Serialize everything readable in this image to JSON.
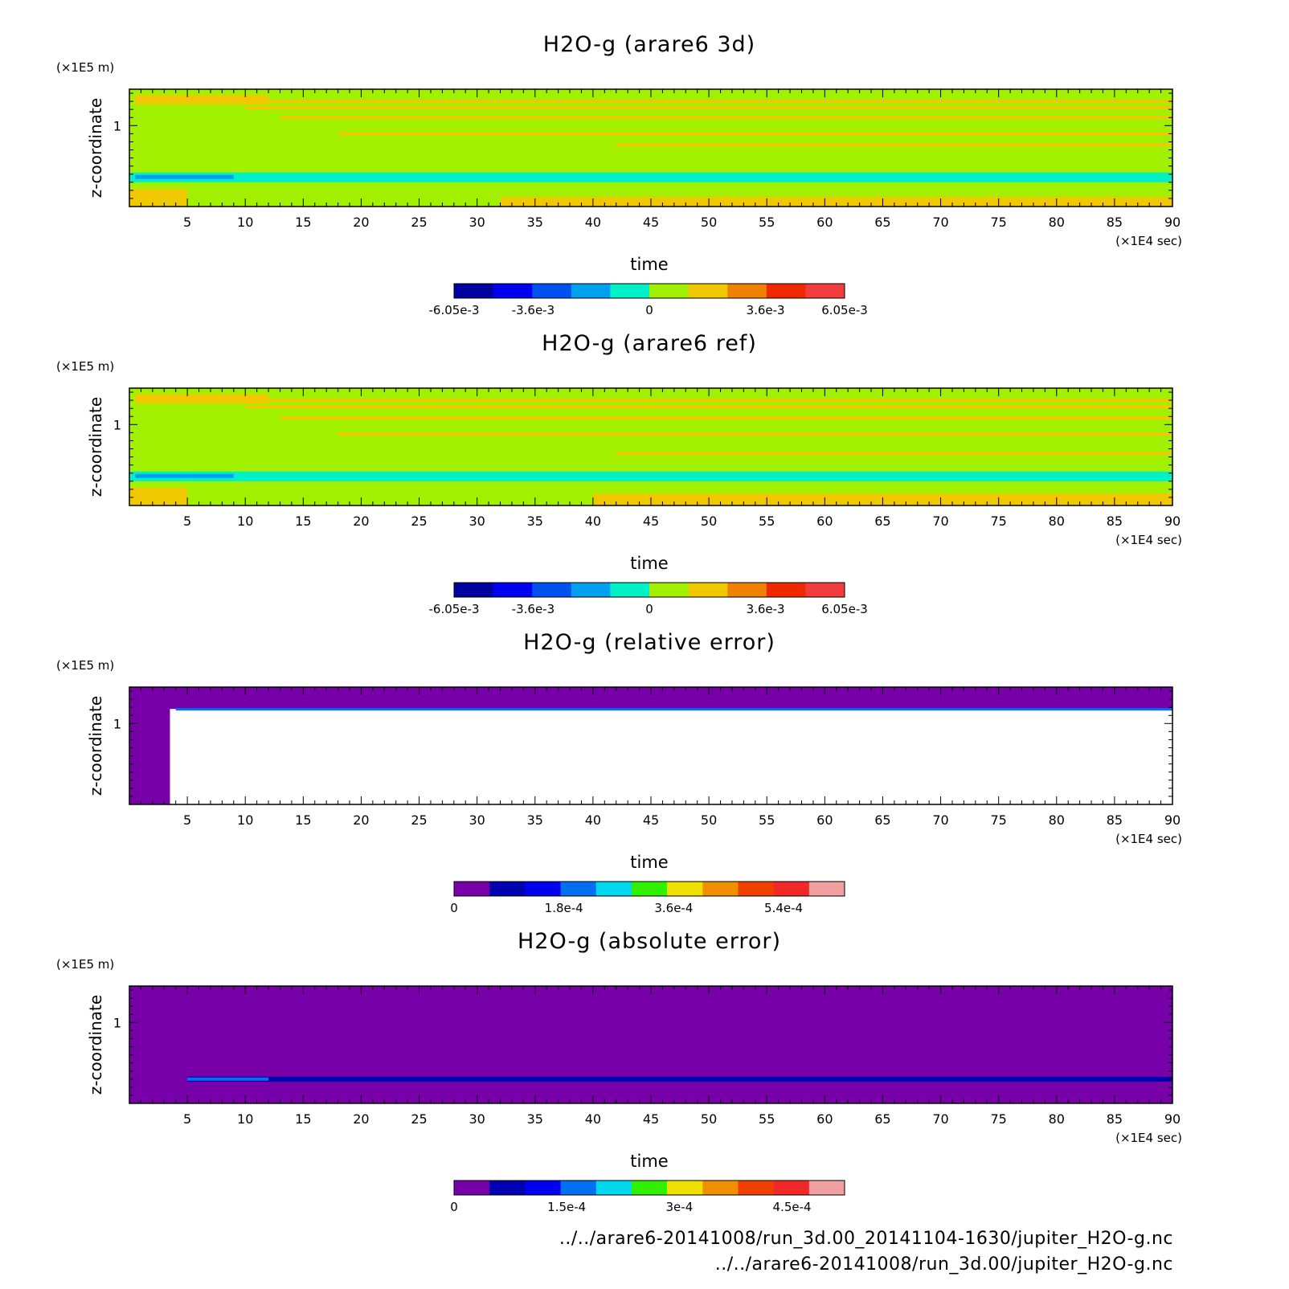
{
  "footer": {
    "line1": "../../arare6-20141008/run_3d.00_20141104-1630/jupiter_H2O-g.nc",
    "line2": "../../arare6-20141008/run_3d.00/jupiter_H2O-g.nc"
  },
  "chart_data": [
    {
      "type": "heatmap",
      "title": "H2O-g (arare6 3d)",
      "xlabel": "time",
      "x_unit": "(×1E4 sec)",
      "ylabel": "z-coordinate",
      "y_unit": "(×1E5 m)",
      "xlim": [
        0,
        90
      ],
      "ylim": [
        0,
        1.45
      ],
      "x_ticks": [
        5,
        10,
        15,
        20,
        25,
        30,
        35,
        40,
        45,
        50,
        55,
        60,
        65,
        70,
        75,
        80,
        85,
        90
      ],
      "y_ticks": [
        1
      ],
      "background_level": 0,
      "bands": [
        {
          "y": [
            1.26,
            1.38
          ],
          "x": [
            0.5,
            12
          ],
          "level": 1
        },
        {
          "y": [
            1.08,
            1.12
          ],
          "x": [
            13,
            90
          ],
          "level": 1
        },
        {
          "y": [
            0.88,
            0.92
          ],
          "x": [
            18,
            90
          ],
          "level": 1
        },
        {
          "y": [
            1.2,
            1.24
          ],
          "x": [
            10,
            90
          ],
          "level": 1
        },
        {
          "y": [
            1.28,
            1.32
          ],
          "x": [
            12,
            90
          ],
          "level": 1
        },
        {
          "y": [
            0.74,
            0.78
          ],
          "x": [
            42,
            90
          ],
          "level": 1
        },
        {
          "y": [
            0.3,
            0.42
          ],
          "x": [
            0,
            90
          ],
          "level": -1
        },
        {
          "y": [
            0.34,
            0.39
          ],
          "x": [
            0.5,
            9
          ],
          "level": -2
        },
        {
          "y": [
            0.0,
            0.22
          ],
          "x": [
            0,
            5
          ],
          "level": 1
        },
        {
          "y": [
            0.0,
            0.12
          ],
          "x": [
            32,
            90
          ],
          "level": 1
        }
      ],
      "colorbar": {
        "colors": [
          "#0000a0",
          "#0000f0",
          "#0050f0",
          "#00a0f0",
          "#00f0c8",
          "#a0f000",
          "#f0c800",
          "#f08000",
          "#f02800",
          "#f03c3c"
        ],
        "labels": [
          {
            "value": -0.00605,
            "text": "-6.05e-3"
          },
          {
            "value": -0.0036,
            "text": "-3.6e-3"
          },
          {
            "value": 0,
            "text": "0"
          },
          {
            "value": 0.0036,
            "text": "3.6e-3"
          },
          {
            "value": 0.00605,
            "text": "6.05e-3"
          }
        ],
        "range": [
          -0.00605,
          0.00605
        ]
      }
    },
    {
      "type": "heatmap",
      "title": "H2O-g (arare6 ref)",
      "xlabel": "time",
      "x_unit": "(×1E4 sec)",
      "ylabel": "z-coordinate",
      "y_unit": "(×1E5 m)",
      "xlim": [
        0,
        90
      ],
      "ylim": [
        0,
        1.45
      ],
      "x_ticks": [
        5,
        10,
        15,
        20,
        25,
        30,
        35,
        40,
        45,
        50,
        55,
        60,
        65,
        70,
        75,
        80,
        85,
        90
      ],
      "y_ticks": [
        1
      ],
      "background_level": 0,
      "bands": [
        {
          "y": [
            1.26,
            1.38
          ],
          "x": [
            0.5,
            12
          ],
          "level": 1
        },
        {
          "y": [
            1.06,
            1.1
          ],
          "x": [
            13,
            90
          ],
          "level": 1
        },
        {
          "y": [
            0.86,
            0.9
          ],
          "x": [
            18,
            90
          ],
          "level": 1
        },
        {
          "y": [
            1.2,
            1.24
          ],
          "x": [
            10,
            90
          ],
          "level": 1
        },
        {
          "y": [
            1.28,
            1.32
          ],
          "x": [
            12,
            90
          ],
          "level": 1
        },
        {
          "y": [
            0.62,
            0.66
          ],
          "x": [
            42,
            90
          ],
          "level": 1
        },
        {
          "y": [
            0.3,
            0.42
          ],
          "x": [
            0,
            90
          ],
          "level": -1
        },
        {
          "y": [
            0.34,
            0.39
          ],
          "x": [
            0.5,
            9
          ],
          "level": -2
        },
        {
          "y": [
            0.0,
            0.22
          ],
          "x": [
            0,
            5
          ],
          "level": 1
        },
        {
          "y": [
            0.0,
            0.15
          ],
          "x": [
            40,
            90
          ],
          "level": 1
        }
      ],
      "colorbar": {
        "colors": [
          "#0000a0",
          "#0000f0",
          "#0050f0",
          "#00a0f0",
          "#00f0c8",
          "#a0f000",
          "#f0c800",
          "#f08000",
          "#f02800",
          "#f03c3c"
        ],
        "labels": [
          {
            "value": -0.00605,
            "text": "-6.05e-3"
          },
          {
            "value": -0.0036,
            "text": "-3.6e-3"
          },
          {
            "value": 0,
            "text": "0"
          },
          {
            "value": 0.0036,
            "text": "3.6e-3"
          },
          {
            "value": 0.00605,
            "text": "6.05e-3"
          }
        ],
        "range": [
          -0.00605,
          0.00605
        ]
      }
    },
    {
      "type": "heatmap",
      "title": "H2O-g (relative error)",
      "xlabel": "time",
      "x_unit": "(×1E4 sec)",
      "ylabel": "z-coordinate",
      "y_unit": "(×1E5 m)",
      "xlim": [
        0,
        90
      ],
      "ylim": [
        0,
        1.45
      ],
      "x_ticks": [
        5,
        10,
        15,
        20,
        25,
        30,
        35,
        40,
        45,
        50,
        55,
        60,
        65,
        70,
        75,
        80,
        85,
        90
      ],
      "y_ticks": [
        1
      ],
      "background_level": 0,
      "bands": [
        {
          "y": [
            1.18,
            1.45
          ],
          "x": [
            0,
            90
          ],
          "level": 0
        },
        {
          "y": [
            0.0,
            1.18
          ],
          "x": [
            0,
            3.5
          ],
          "level": 0
        },
        {
          "y": [
            0.0,
            1.18
          ],
          "x": [
            3.5,
            90
          ],
          "level": "white"
        },
        {
          "y": [
            1.16,
            1.19
          ],
          "x": [
            4,
            90
          ],
          "level": 3
        }
      ],
      "colorbar": {
        "colors": [
          "#7800a8",
          "#0000b0",
          "#0000f0",
          "#0070f0",
          "#00d8f0",
          "#30f000",
          "#f0e000",
          "#f09000",
          "#f04000",
          "#f02828",
          "#f0a0a0"
        ],
        "labels": [
          {
            "value": 0,
            "text": "0"
          },
          {
            "value": 0.00018,
            "text": "1.8e-4"
          },
          {
            "value": 0.00036,
            "text": "3.6e-4"
          },
          {
            "value": 0.00054,
            "text": "5.4e-4"
          }
        ],
        "range": [
          0,
          0.00064
        ]
      }
    },
    {
      "type": "heatmap",
      "title": "H2O-g (absolute error)",
      "xlabel": "time",
      "x_unit": "(×1E4 sec)",
      "ylabel": "z-coordinate",
      "y_unit": "(×1E5 m)",
      "xlim": [
        0,
        90
      ],
      "ylim": [
        0,
        1.45
      ],
      "x_ticks": [
        5,
        10,
        15,
        20,
        25,
        30,
        35,
        40,
        45,
        50,
        55,
        60,
        65,
        70,
        75,
        80,
        85,
        90
      ],
      "y_ticks": [
        1
      ],
      "background_level": 0,
      "bands": [
        {
          "y": [
            0.27,
            0.33
          ],
          "x": [
            5,
            90
          ],
          "level": 1
        },
        {
          "y": [
            0.28,
            0.32
          ],
          "x": [
            5,
            12
          ],
          "level": 3
        }
      ],
      "colorbar": {
        "colors": [
          "#7800a8",
          "#0000b0",
          "#0000f0",
          "#0070f0",
          "#00d8f0",
          "#30f000",
          "#f0e000",
          "#f09000",
          "#f04000",
          "#f02828",
          "#f0a0a0"
        ],
        "labels": [
          {
            "value": 0,
            "text": "0"
          },
          {
            "value": 0.00015,
            "text": "1.5e-4"
          },
          {
            "value": 0.0003,
            "text": "3e-4"
          },
          {
            "value": 0.00045,
            "text": "4.5e-4"
          }
        ],
        "range": [
          0,
          0.00052
        ]
      }
    }
  ]
}
